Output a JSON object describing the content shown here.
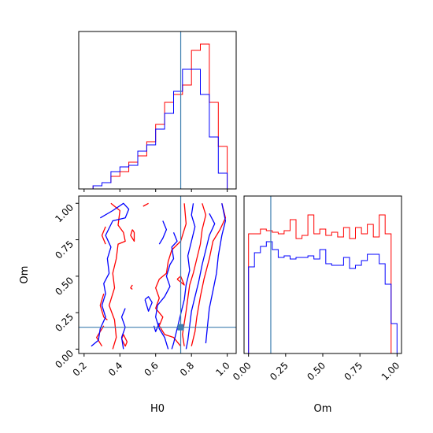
{
  "chart_data": {
    "type": "corner",
    "parameters": [
      "H0",
      "Om"
    ],
    "truths": {
      "H0": 0.74,
      "Om": 0.15
    },
    "colors": {
      "red_run": "#ff0000",
      "blue_run": "#0000ff",
      "truth": "#3f7fb0"
    },
    "series": [
      {
        "color_key": "red_run"
      },
      {
        "color_key": "blue_run"
      }
    ],
    "panels": [
      {
        "id": "h0-marginal",
        "type": "step-histogram",
        "x_param": "H0",
        "xlim": [
          0.17,
          1.05
        ],
        "ylim": [
          0,
          1.0
        ],
        "bin_edges": [
          0.25,
          0.3,
          0.35,
          0.4,
          0.45,
          0.5,
          0.55,
          0.6,
          0.65,
          0.7,
          0.75,
          0.8,
          0.85,
          0.9,
          0.95,
          1.0
        ],
        "series_values": [
          [
            0.02,
            0.04,
            0.08,
            0.11,
            0.17,
            0.21,
            0.3,
            0.41,
            0.55,
            0.6,
            0.66,
            0.88,
            0.92,
            0.55,
            0.27
          ],
          [
            0.02,
            0.04,
            0.11,
            0.14,
            0.15,
            0.24,
            0.28,
            0.38,
            0.48,
            0.62,
            0.76,
            0.76,
            0.6,
            0.33,
            0.1
          ]
        ]
      },
      {
        "id": "om-marginal",
        "type": "step-histogram",
        "x_param": "Om",
        "xlim": [
          -0.03,
          1.03
        ],
        "ylim": [
          0,
          1.0
        ],
        "bin_edges": [
          0.0,
          0.04,
          0.08,
          0.12,
          0.16,
          0.2,
          0.24,
          0.28,
          0.32,
          0.36,
          0.4,
          0.44,
          0.48,
          0.52,
          0.56,
          0.6,
          0.64,
          0.68,
          0.72,
          0.76,
          0.8,
          0.84,
          0.88,
          0.92,
          0.96,
          1.0
        ],
        "series_values": [
          [
            0.76,
            0.76,
            0.79,
            0.78,
            0.77,
            0.76,
            0.78,
            0.85,
            0.73,
            0.75,
            0.88,
            0.76,
            0.79,
            0.75,
            0.77,
            0.74,
            0.8,
            0.73,
            0.8,
            0.76,
            0.82,
            0.74,
            0.88,
            0.76,
            0.0
          ],
          [
            0.55,
            0.64,
            0.68,
            0.71,
            0.66,
            0.61,
            0.62,
            0.6,
            0.61,
            0.61,
            0.62,
            0.6,
            0.66,
            0.57,
            0.56,
            0.56,
            0.61,
            0.54,
            0.56,
            0.59,
            0.63,
            0.63,
            0.57,
            0.44,
            0.19
          ]
        ]
      },
      {
        "id": "h0-om-joint",
        "type": "contour",
        "x_param": "H0",
        "y_param": "Om",
        "xlim": [
          0.17,
          1.05
        ],
        "ylim": [
          -0.03,
          1.05
        ],
        "xlabel": "H0",
        "ylabel": "Om",
        "xticks": [
          0.2,
          0.4,
          0.6,
          0.8,
          1.0
        ],
        "xtick_labels": [
          "0.2",
          "0.4",
          "0.6",
          "0.8",
          "1.0"
        ],
        "yticks": [
          0.0,
          0.25,
          0.5,
          0.75,
          1.0
        ],
        "ytick_labels": [
          "0.00",
          "0.25",
          "0.50",
          "0.75",
          "1.00"
        ],
        "contours": [
          {
            "color_key": "red_run",
            "points": [
              [
                0.35,
                1.0
              ],
              [
                0.4,
                0.95
              ],
              [
                0.39,
                0.85
              ],
              [
                0.42,
                0.8
              ],
              [
                0.43,
                0.74
              ],
              [
                0.39,
                0.72
              ],
              [
                0.38,
                0.62
              ],
              [
                0.36,
                0.52
              ],
              [
                0.37,
                0.42
              ],
              [
                0.34,
                0.3
              ],
              [
                0.37,
                0.2
              ],
              [
                0.38,
                0.08
              ],
              [
                0.36,
                0.0
              ]
            ]
          },
          {
            "color_key": "red_run",
            "points": [
              [
                0.32,
                0.84
              ],
              [
                0.3,
                0.78
              ],
              [
                0.32,
                0.72
              ]
            ]
          },
          {
            "color_key": "red_run",
            "points": [
              [
                0.47,
                0.82
              ],
              [
                0.46,
                0.78
              ],
              [
                0.48,
                0.74
              ],
              [
                0.48,
                0.8
              ],
              [
                0.47,
                0.82
              ]
            ]
          },
          {
            "color_key": "red_run",
            "points": [
              [
                0.31,
                0.38
              ],
              [
                0.29,
                0.3
              ],
              [
                0.31,
                0.22
              ],
              [
                0.33,
                0.2
              ]
            ]
          },
          {
            "color_key": "red_run",
            "points": [
              [
                0.31,
                0.16
              ],
              [
                0.27,
                0.08
              ],
              [
                0.3,
                0.02
              ]
            ]
          },
          {
            "color_key": "red_run",
            "points": [
              [
                0.41,
                0.07
              ],
              [
                0.43,
                0.02
              ],
              [
                0.44,
                0.05
              ],
              [
                0.42,
                0.1
              ],
              [
                0.41,
                0.07
              ]
            ]
          },
          {
            "color_key": "red_run",
            "points": [
              [
                0.56,
                1.0
              ],
              [
                0.53,
                0.98
              ]
            ]
          },
          {
            "color_key": "red_run",
            "points": [
              [
                0.76,
                1.0
              ],
              [
                0.77,
                0.86
              ],
              [
                0.74,
                0.74
              ],
              [
                0.69,
                0.68
              ],
              [
                0.67,
                0.6
              ],
              [
                0.66,
                0.52
              ],
              [
                0.62,
                0.48
              ],
              [
                0.6,
                0.42
              ],
              [
                0.62,
                0.35
              ],
              [
                0.6,
                0.28
              ],
              [
                0.64,
                0.22
              ],
              [
                0.62,
                0.16
              ],
              [
                0.65,
                0.1
              ],
              [
                0.7,
                0.08
              ],
              [
                0.74,
                0.02
              ]
            ]
          },
          {
            "color_key": "red_run",
            "points": [
              [
                0.86,
                1.0
              ],
              [
                0.88,
                0.92
              ],
              [
                0.86,
                0.82
              ],
              [
                0.85,
                0.72
              ],
              [
                0.83,
                0.62
              ],
              [
                0.81,
                0.52
              ],
              [
                0.79,
                0.44
              ],
              [
                0.78,
                0.35
              ],
              [
                0.77,
                0.26
              ],
              [
                0.76,
                0.18
              ],
              [
                0.75,
                0.1
              ],
              [
                0.76,
                0.02
              ]
            ]
          },
          {
            "color_key": "red_run",
            "points": [
              [
                0.97,
                1.0
              ],
              [
                0.99,
                0.9
              ],
              [
                0.96,
                0.82
              ],
              [
                0.92,
                0.74
              ],
              [
                0.9,
                0.62
              ],
              [
                0.87,
                0.48
              ],
              [
                0.85,
                0.36
              ],
              [
                0.83,
                0.22
              ],
              [
                0.82,
                0.12
              ],
              [
                0.8,
                0.02
              ]
            ]
          },
          {
            "color_key": "red_run",
            "points": [
              [
                0.72,
                0.48
              ],
              [
                0.76,
                0.44
              ],
              [
                0.74,
                0.5
              ],
              [
                0.72,
                0.48
              ]
            ]
          },
          {
            "color_key": "red_run",
            "points": [
              [
                0.47,
                0.44
              ],
              [
                0.46,
                0.42
              ],
              [
                0.47,
                0.41
              ]
            ]
          },
          {
            "color_key": "blue_run",
            "points": [
              [
                0.29,
                0.9
              ],
              [
                0.36,
                0.95
              ],
              [
                0.42,
                1.0
              ],
              [
                0.45,
                0.96
              ],
              [
                0.43,
                0.9
              ],
              [
                0.36,
                0.88
              ],
              [
                0.32,
                0.78
              ],
              [
                0.35,
                0.7
              ],
              [
                0.33,
                0.62
              ],
              [
                0.34,
                0.52
              ],
              [
                0.31,
                0.45
              ],
              [
                0.32,
                0.38
              ],
              [
                0.3,
                0.3
              ],
              [
                0.32,
                0.22
              ],
              [
                0.29,
                0.14
              ],
              [
                0.28,
                0.06
              ],
              [
                0.24,
                0.02
              ]
            ]
          },
          {
            "color_key": "blue_run",
            "points": [
              [
                0.43,
                0.28
              ],
              [
                0.41,
                0.22
              ],
              [
                0.43,
                0.15
              ],
              [
                0.41,
                0.08
              ],
              [
                0.42,
                0.0
              ]
            ]
          },
          {
            "color_key": "blue_run",
            "points": [
              [
                0.64,
                0.88
              ],
              [
                0.66,
                0.82
              ],
              [
                0.64,
                0.76
              ],
              [
                0.62,
                0.72
              ]
            ]
          },
          {
            "color_key": "blue_run",
            "points": [
              [
                0.7,
                0.8
              ],
              [
                0.72,
                0.74
              ],
              [
                0.69,
                0.7
              ],
              [
                0.7,
                0.62
              ],
              [
                0.68,
                0.58
              ],
              [
                0.66,
                0.5
              ],
              [
                0.68,
                0.43
              ],
              [
                0.65,
                0.36
              ],
              [
                0.61,
                0.3
              ],
              [
                0.6,
                0.22
              ],
              [
                0.62,
                0.14
              ],
              [
                0.65,
                0.08
              ],
              [
                0.67,
                0.0
              ]
            ]
          },
          {
            "color_key": "blue_run",
            "points": [
              [
                0.81,
                1.0
              ],
              [
                0.8,
                0.92
              ],
              [
                0.82,
                0.84
              ],
              [
                0.8,
                0.74
              ],
              [
                0.78,
                0.64
              ],
              [
                0.79,
                0.54
              ],
              [
                0.77,
                0.44
              ],
              [
                0.76,
                0.34
              ],
              [
                0.74,
                0.24
              ],
              [
                0.72,
                0.14
              ],
              [
                0.7,
                0.04
              ],
              [
                0.69,
                0.0
              ]
            ]
          },
          {
            "color_key": "blue_run",
            "points": [
              [
                0.9,
                0.93
              ],
              [
                0.93,
                0.86
              ],
              [
                0.9,
                0.78
              ],
              [
                0.88,
                0.68
              ],
              [
                0.86,
                0.58
              ],
              [
                0.84,
                0.46
              ],
              [
                0.82,
                0.36
              ],
              [
                0.8,
                0.26
              ],
              [
                0.79,
                0.16
              ],
              [
                0.78,
                0.06
              ],
              [
                0.77,
                0.0
              ]
            ]
          },
          {
            "color_key": "blue_run",
            "points": [
              [
                0.97,
                1.0
              ],
              [
                0.99,
                0.88
              ],
              [
                0.97,
                0.78
              ],
              [
                0.95,
                0.64
              ],
              [
                0.94,
                0.52
              ],
              [
                0.92,
                0.4
              ],
              [
                0.9,
                0.28
              ],
              [
                0.89,
                0.16
              ],
              [
                0.88,
                0.04
              ]
            ]
          },
          {
            "color_key": "blue_run",
            "points": [
              [
                0.54,
                0.34
              ],
              [
                0.56,
                0.26
              ],
              [
                0.58,
                0.32
              ],
              [
                0.56,
                0.36
              ],
              [
                0.54,
                0.34
              ]
            ]
          },
          {
            "color_key": "blue_run",
            "points": [
              [
                0.59,
                0.16
              ],
              [
                0.6,
                0.12
              ],
              [
                0.62,
                0.18
              ]
            ]
          }
        ]
      },
      {
        "id": "om-axes",
        "type": "axes",
        "x_param": "Om",
        "xlim": [
          -0.03,
          1.03
        ],
        "xlabel": "Om",
        "xticks": [
          0.0,
          0.25,
          0.5,
          0.75,
          1.0
        ],
        "xtick_labels": [
          "0.00",
          "0.25",
          "0.50",
          "0.75",
          "1.00"
        ]
      }
    ]
  }
}
